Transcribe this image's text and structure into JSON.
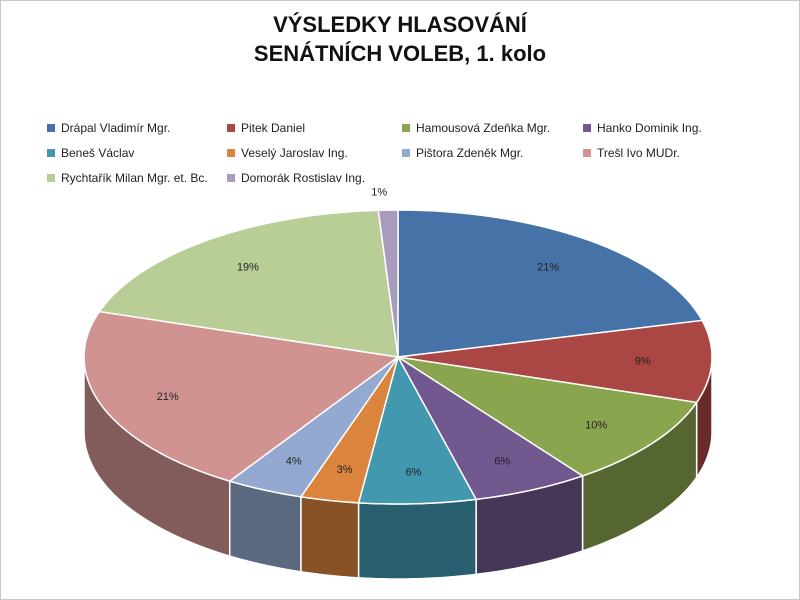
{
  "chart_data": {
    "type": "pie",
    "title_line1": "VÝSLEDKY HLASOVÁNÍ",
    "title_line2": "SENÁTNÍCH VOLEB, 1. kolo",
    "legend_placement": "top",
    "slices": [
      {
        "name": "Drápal Vladimír  Mgr.",
        "value": 21,
        "label": "21%",
        "color": "#4572A7"
      },
      {
        "name": "Pitek Daniel",
        "value": 9,
        "label": "9%",
        "color": "#AA4643"
      },
      {
        "name": "Hamousová Zdeňka Mgr.",
        "value": 10,
        "label": "10%",
        "color": "#89A54E"
      },
      {
        "name": "Hanko Dominik Ing.",
        "value": 6,
        "label": "6%",
        "color": "#71588F"
      },
      {
        "name": "Beneš Václav",
        "value": 6,
        "label": "6%",
        "color": "#4198AF"
      },
      {
        "name": "Veselý Jaroslav Ing.",
        "value": 3,
        "label": "3%",
        "color": "#DB843D"
      },
      {
        "name": "Pištora Zdeněk Mgr.",
        "value": 4,
        "label": "4%",
        "color": "#93A9CF"
      },
      {
        "name": "Trešl Ivo MUDr.",
        "value": 21,
        "label": "21%",
        "color": "#D19392"
      },
      {
        "name": "Rychtařík Milan Mgr. et. Bc.",
        "value": 19,
        "label": "19%",
        "color": "#B9CD96"
      },
      {
        "name": "Domorák Rostislav  Ing.",
        "value": 1,
        "label": "1%",
        "color": "#A99BBD"
      }
    ]
  }
}
